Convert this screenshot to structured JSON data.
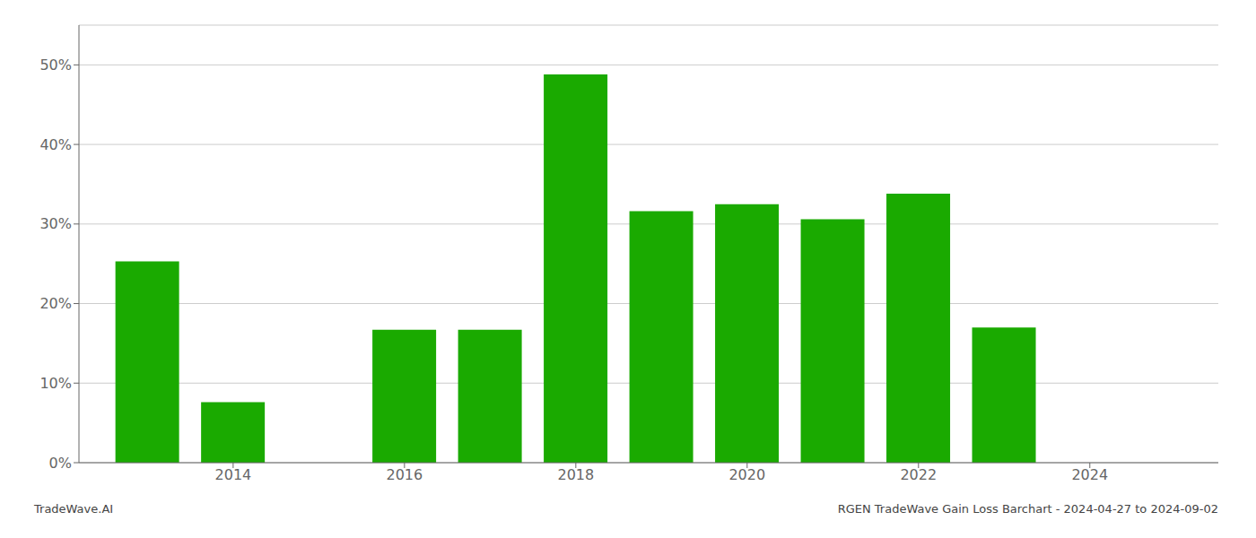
{
  "chart_data": {
    "type": "bar",
    "x": [
      2013,
      2014,
      2016,
      2017,
      2018,
      2019,
      2020,
      2021,
      2022,
      2023
    ],
    "values": [
      0.253,
      0.076,
      0.167,
      0.167,
      0.488,
      0.316,
      0.325,
      0.306,
      0.338,
      0.17
    ],
    "color": "#1aaa00",
    "xlim": [
      2012.2,
      2025.5
    ],
    "xticks": [
      2014,
      2016,
      2018,
      2020,
      2022,
      2024
    ],
    "ylim": [
      0,
      0.55
    ],
    "yticks": [
      {
        "value": 0.0,
        "label": "0%"
      },
      {
        "value": 0.1,
        "label": "10%"
      },
      {
        "value": 0.2,
        "label": "20%"
      },
      {
        "value": 0.3,
        "label": "30%"
      },
      {
        "value": 0.4,
        "label": "40%"
      },
      {
        "value": 0.5,
        "label": "50%"
      }
    ],
    "grid": true,
    "annotations": [
      "TradeWave.AI",
      "RGEN TradeWave Gain Loss Barchart - 2024-04-27 to 2024-09-02"
    ]
  }
}
